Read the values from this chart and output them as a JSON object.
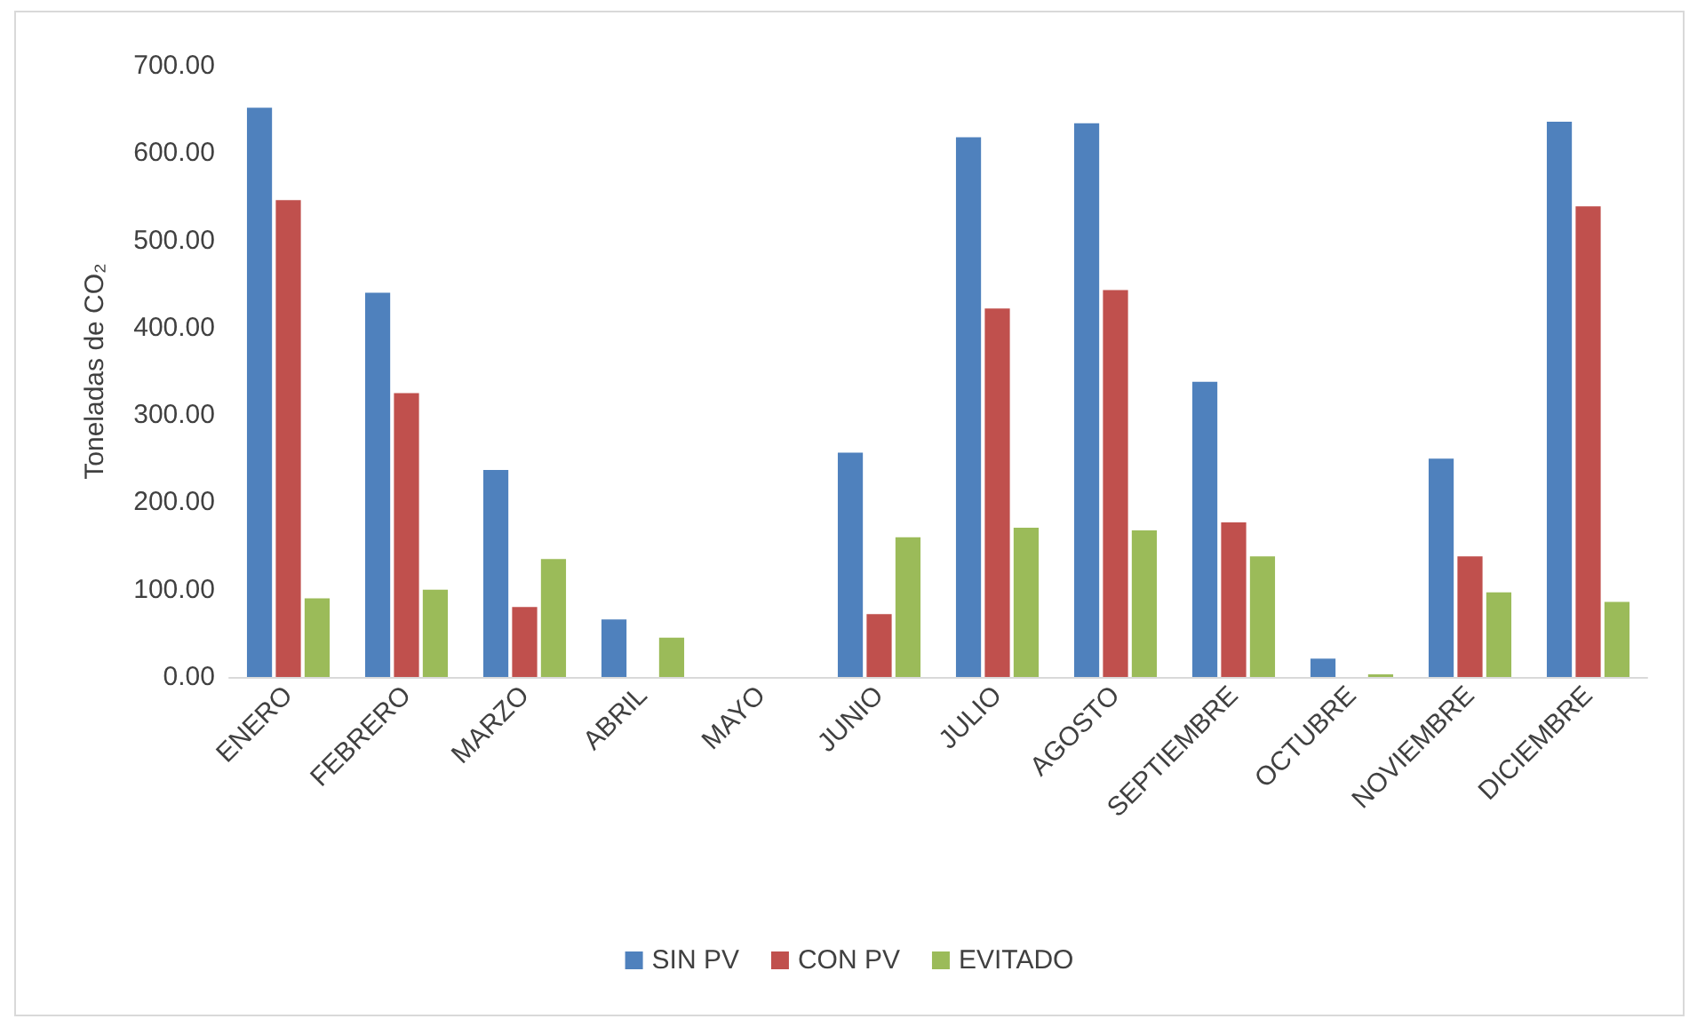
{
  "chart_data": {
    "type": "bar",
    "ylabel": "Toneladas de CO₂",
    "categories": [
      "ENERO",
      "FEBRERO",
      "MARZO",
      "ABRIL",
      "MAYO",
      "JUNIO",
      "JULIO",
      "AGOSTO",
      "SEPTIEMBRE",
      "OCTUBRE",
      "NOVIEMBRE",
      "DICIEMBRE"
    ],
    "series": [
      {
        "name": "SIN PV",
        "color": "#4f81bd",
        "values": [
          652,
          440,
          237,
          66,
          0,
          257,
          618,
          634,
          338,
          21,
          250,
          636
        ]
      },
      {
        "name": "CON PV",
        "color": "#c0504d",
        "values": [
          546,
          325,
          80,
          0,
          0,
          72,
          422,
          443,
          177,
          0,
          138,
          539
        ]
      },
      {
        "name": "EVITADO",
        "color": "#9bbb59",
        "values": [
          90,
          100,
          135,
          45,
          0,
          160,
          171,
          168,
          138,
          3,
          97,
          86
        ]
      }
    ],
    "ylim": [
      0,
      700
    ],
    "yticks": [
      {
        "value": 0,
        "label": "0.00"
      },
      {
        "value": 100,
        "label": "100.00"
      },
      {
        "value": 200,
        "label": "200.00"
      },
      {
        "value": 300,
        "label": "300.00"
      },
      {
        "value": 400,
        "label": "400.00"
      },
      {
        "value": 500,
        "label": "500.00"
      },
      {
        "value": 600,
        "label": "600.00"
      },
      {
        "value": 700,
        "label": "700.00"
      }
    ],
    "grid": false,
    "legend": "bottom"
  }
}
